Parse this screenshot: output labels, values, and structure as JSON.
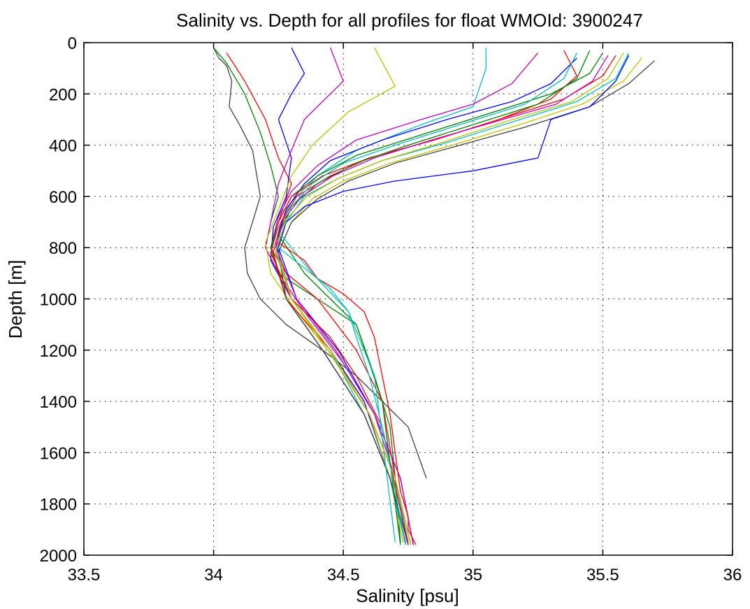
{
  "chart_data": {
    "type": "line",
    "title": "Salinity vs. Depth for all profiles for float WMOId: 3900247",
    "xlabel": "Salinity [psu]",
    "ylabel": "Depth [m]",
    "xlim": [
      33.5,
      36
    ],
    "ylim": [
      0,
      2000
    ],
    "y_reversed": true,
    "grid": true,
    "legend": "none",
    "x_ticks": [
      "33.5",
      "34",
      "34.5",
      "35",
      "35.5",
      "36"
    ],
    "y_ticks": [
      "0",
      "200",
      "400",
      "600",
      "800",
      "1000",
      "1200",
      "1400",
      "1600",
      "1800",
      "2000"
    ],
    "palette": [
      "#0000ff",
      "#008000",
      "#ff0000",
      "#00bfbf",
      "#bf00bf",
      "#bfbf00",
      "#404040"
    ],
    "series": [
      {
        "color": "#404040",
        "x": [
          34.0,
          34.02,
          34.05,
          34.07,
          34.06,
          34.1,
          34.15,
          34.18,
          34.15,
          34.12,
          34.13,
          34.18,
          34.28,
          34.42,
          34.55,
          34.65,
          34.75,
          34.82
        ],
        "y": [
          20,
          60,
          90,
          150,
          250,
          320,
          420,
          600,
          700,
          800,
          900,
          1000,
          1100,
          1200,
          1300,
          1400,
          1500,
          1700
        ]
      },
      {
        "color": "#008000",
        "x": [
          34.0,
          34.05,
          34.12,
          34.18,
          34.22,
          34.25,
          34.22,
          34.2,
          34.25,
          34.4,
          34.55,
          34.62,
          34.68,
          34.7,
          34.72
        ],
        "y": [
          20,
          80,
          200,
          350,
          480,
          600,
          700,
          800,
          900,
          1000,
          1100,
          1300,
          1500,
          1700,
          1950
        ]
      },
      {
        "color": "#ff0000",
        "x": [
          34.05,
          34.12,
          34.2,
          34.25,
          34.3,
          34.25,
          34.22,
          34.28,
          34.4,
          34.55,
          34.65,
          34.7,
          34.75
        ],
        "y": [
          40,
          150,
          300,
          450,
          550,
          700,
          800,
          900,
          1000,
          1200,
          1400,
          1700,
          1950
        ]
      },
      {
        "color": "#0000ff",
        "x": [
          34.3,
          34.35,
          34.3,
          34.25,
          34.3,
          34.28,
          34.23,
          34.22,
          34.3,
          34.45,
          34.58,
          34.68,
          34.74
        ],
        "y": [
          20,
          120,
          200,
          300,
          450,
          600,
          720,
          850,
          1000,
          1200,
          1400,
          1700,
          1950
        ]
      },
      {
        "color": "#bf00bf",
        "x": [
          34.45,
          34.5,
          34.35,
          34.3,
          34.25,
          34.22,
          34.2,
          34.25,
          34.35,
          34.5,
          34.62,
          34.7,
          34.75
        ],
        "y": [
          20,
          150,
          300,
          420,
          550,
          700,
          800,
          900,
          1050,
          1250,
          1450,
          1700,
          1960
        ]
      },
      {
        "color": "#bfbf00",
        "x": [
          34.62,
          34.7,
          34.52,
          34.38,
          34.3,
          34.25,
          34.2,
          34.22,
          34.32,
          34.48,
          34.6,
          34.68,
          34.73
        ],
        "y": [
          20,
          170,
          270,
          400,
          520,
          650,
          780,
          900,
          1050,
          1250,
          1450,
          1700,
          1950
        ]
      },
      {
        "color": "#00bfbf",
        "x": [
          35.05,
          35.05,
          35.0,
          34.8,
          34.55,
          34.4,
          34.3,
          34.25,
          34.22,
          34.3,
          34.45,
          34.6,
          34.7,
          34.75
        ],
        "y": [
          20,
          100,
          250,
          320,
          420,
          520,
          620,
          720,
          820,
          1000,
          1200,
          1450,
          1700,
          1950
        ]
      },
      {
        "color": "#bf00bf",
        "x": [
          35.25,
          35.15,
          35.0,
          34.8,
          34.55,
          34.4,
          34.3,
          34.25,
          34.22,
          34.28,
          34.42,
          34.58,
          34.68,
          34.74
        ],
        "y": [
          40,
          160,
          240,
          300,
          380,
          480,
          580,
          680,
          800,
          1000,
          1200,
          1450,
          1700,
          1960
        ]
      },
      {
        "color": "#0000ff",
        "x": [
          35.4,
          35.3,
          35.15,
          34.9,
          34.65,
          34.45,
          34.35,
          34.28,
          34.24,
          34.3,
          34.45,
          34.6,
          34.7,
          34.76
        ],
        "y": [
          60,
          160,
          230,
          300,
          380,
          460,
          550,
          650,
          780,
          1000,
          1200,
          1450,
          1700,
          1960
        ]
      },
      {
        "color": "#008000",
        "x": [
          35.5,
          35.45,
          35.3,
          35.05,
          34.8,
          34.55,
          34.4,
          34.3,
          34.25,
          34.22,
          34.28,
          34.42,
          34.58,
          34.68,
          34.75
        ],
        "y": [
          40,
          120,
          200,
          280,
          360,
          440,
          520,
          600,
          700,
          800,
          1000,
          1200,
          1450,
          1700,
          1960
        ]
      },
      {
        "color": "#ff0000",
        "x": [
          35.55,
          35.5,
          35.35,
          35.1,
          34.85,
          34.6,
          34.45,
          34.32,
          34.26,
          34.23,
          34.28,
          34.45,
          34.6,
          34.7,
          34.76
        ],
        "y": [
          50,
          130,
          220,
          300,
          380,
          450,
          520,
          600,
          700,
          820,
          1000,
          1200,
          1450,
          1700,
          1960
        ]
      },
      {
        "color": "#00bfbf",
        "x": [
          35.6,
          35.55,
          35.4,
          35.15,
          34.9,
          34.65,
          34.48,
          34.35,
          34.28,
          34.24,
          34.3,
          34.45,
          34.58,
          34.68,
          34.74
        ],
        "y": [
          40,
          140,
          230,
          310,
          390,
          460,
          530,
          600,
          700,
          820,
          1000,
          1200,
          1450,
          1700,
          1960
        ]
      },
      {
        "color": "#bfbf00",
        "x": [
          35.65,
          35.58,
          35.42,
          35.18,
          34.92,
          34.68,
          34.5,
          34.38,
          34.3,
          34.25,
          34.3,
          34.45,
          34.6,
          34.7,
          34.76
        ],
        "y": [
          60,
          150,
          240,
          320,
          400,
          470,
          540,
          610,
          700,
          820,
          1000,
          1200,
          1450,
          1700,
          1960
        ]
      },
      {
        "color": "#404040",
        "x": [
          35.7,
          35.6,
          35.45,
          35.2,
          34.95,
          34.7,
          34.52,
          34.4,
          34.3,
          34.25,
          34.28,
          34.42,
          34.58,
          34.68,
          34.75
        ],
        "y": [
          70,
          160,
          250,
          330,
          400,
          470,
          540,
          610,
          700,
          820,
          1000,
          1200,
          1450,
          1700,
          1960
        ]
      },
      {
        "color": "#0000ff",
        "x": [
          35.6,
          35.55,
          35.45,
          35.3,
          35.25,
          35.0,
          34.7,
          34.5,
          34.35,
          34.28,
          34.25,
          34.32,
          34.48,
          34.62,
          34.72,
          34.77
        ],
        "y": [
          50,
          150,
          250,
          300,
          450,
          500,
          540,
          580,
          640,
          700,
          800,
          1000,
          1200,
          1450,
          1700,
          1960
        ]
      },
      {
        "color": "#ff0000",
        "x": [
          35.35,
          35.4,
          35.3,
          35.1,
          34.85,
          34.6,
          34.42,
          34.3,
          34.25,
          34.22,
          34.3,
          34.45,
          34.55,
          34.65,
          34.75
        ],
        "y": [
          30,
          130,
          220,
          300,
          380,
          450,
          520,
          600,
          700,
          820,
          1000,
          1150,
          1300,
          1500,
          1960
        ]
      },
      {
        "color": "#008000",
        "x": [
          35.45,
          35.4,
          35.25,
          35.0,
          34.75,
          34.55,
          34.4,
          34.3,
          34.25,
          34.35,
          34.55,
          34.65,
          34.72
        ],
        "y": [
          30,
          140,
          240,
          320,
          400,
          470,
          550,
          640,
          750,
          900,
          1100,
          1400,
          1960
        ]
      },
      {
        "color": "#bf00bf",
        "x": [
          35.52,
          35.46,
          35.32,
          35.08,
          34.84,
          34.62,
          34.46,
          34.34,
          34.27,
          34.24,
          34.32,
          34.47,
          34.62,
          34.72,
          34.77
        ],
        "y": [
          50,
          150,
          240,
          310,
          380,
          450,
          520,
          600,
          690,
          800,
          1000,
          1200,
          1450,
          1700,
          1960
        ]
      },
      {
        "color": "#00bfbf",
        "x": [
          35.4,
          35.35,
          35.2,
          34.95,
          34.7,
          34.5,
          34.38,
          34.3,
          34.26,
          34.38,
          34.52,
          34.62,
          34.7
        ],
        "y": [
          40,
          140,
          240,
          320,
          400,
          470,
          550,
          640,
          750,
          900,
          1050,
          1300,
          1950
        ]
      },
      {
        "color": "#bfbf00",
        "x": [
          35.58,
          35.52,
          35.38,
          35.12,
          34.88,
          34.65,
          34.48,
          34.36,
          34.28,
          34.24,
          34.3,
          34.44,
          34.6,
          34.7,
          34.76
        ],
        "y": [
          40,
          140,
          230,
          310,
          390,
          460,
          530,
          600,
          690,
          810,
          1000,
          1200,
          1450,
          1700,
          1960
        ]
      },
      {
        "color": "#ff0000",
        "x": [
          34.25,
          34.35,
          34.4,
          34.5,
          34.58,
          34.62,
          34.65,
          34.68,
          34.7,
          34.72,
          34.75,
          34.75,
          34.78
        ],
        "y": [
          780,
          850,
          920,
          980,
          1050,
          1150,
          1300,
          1450,
          1600,
          1750,
          1850,
          1900,
          1960
        ]
      },
      {
        "color": "#00bfbf",
        "x": [
          34.25,
          34.35,
          34.45,
          34.52,
          34.55,
          34.6,
          34.65,
          34.7,
          34.74
        ],
        "y": [
          800,
          880,
          960,
          1050,
          1150,
          1300,
          1500,
          1750,
          1960
        ]
      }
    ]
  }
}
